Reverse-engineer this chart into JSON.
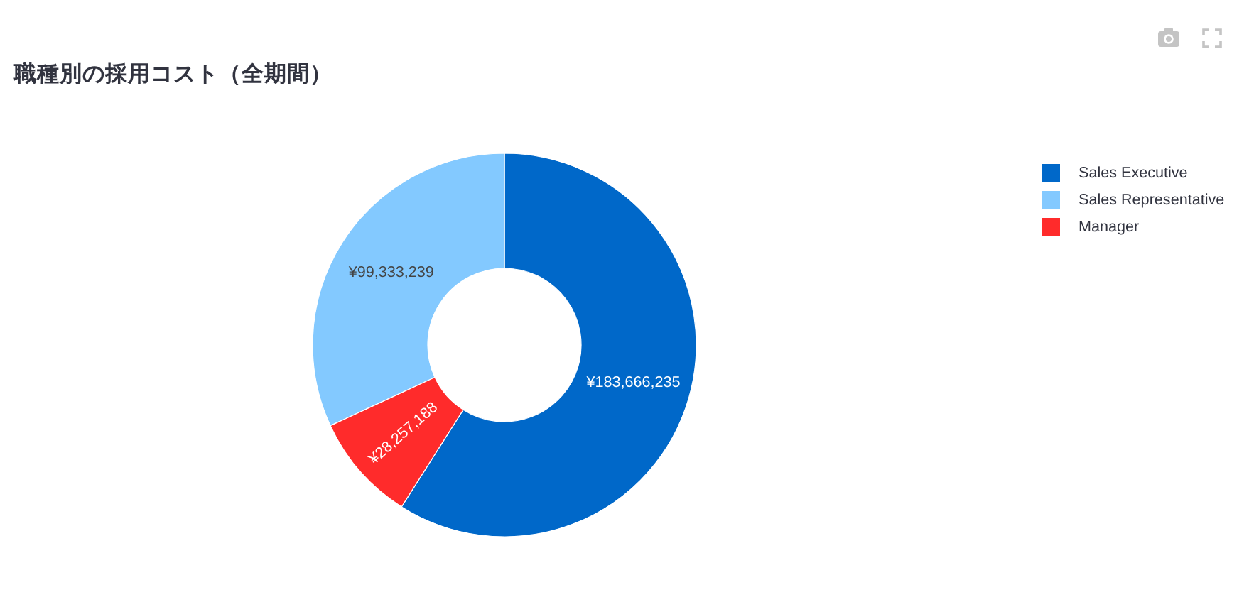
{
  "chart_data": {
    "type": "donut",
    "title": "職種別の採用コスト（全期間）",
    "categories": [
      "Sales Executive",
      "Sales Representative",
      "Manager"
    ],
    "values": [
      183666235,
      99333239,
      28257188
    ],
    "colors": [
      "#0068c9",
      "#83c9ff",
      "#ff2b2b"
    ],
    "value_labels": [
      "¥183,666,235",
      "¥99,333,239",
      "¥28,257,188"
    ],
    "legend": "top right"
  }
}
